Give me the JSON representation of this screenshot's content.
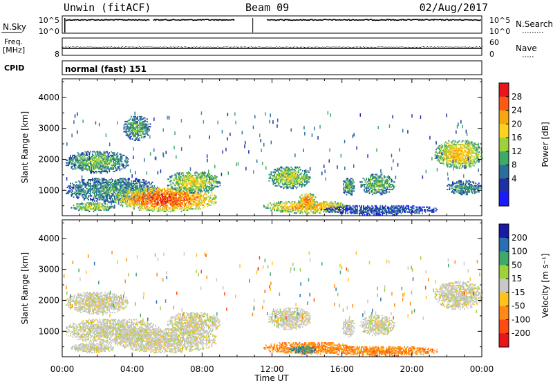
{
  "header": {
    "station": "Unwin (fitACF)",
    "beam": "Beam 09",
    "date": "02/Aug/2017"
  },
  "noise_panel": {
    "left_label": "N.Sky",
    "right_label": "N.Search",
    "left_ticks": [
      "10^5",
      "10^0"
    ],
    "right_ticks": [
      "10^5",
      "10^0"
    ]
  },
  "freq_panel": {
    "left_label_1": "Freq.",
    "left_label_2": "[MHz]",
    "left_tick_top": "",
    "left_tick_bottom": "8",
    "right_label": "Nave",
    "right_ticks": [
      "60",
      "0"
    ]
  },
  "cpid_panel": {
    "label": "CPID",
    "text": "normal (fast) 151"
  },
  "chart_data": [
    {
      "type": "heatmap",
      "name": "power",
      "xlabel": "Time UT",
      "ylabel": "Slant Range [km]",
      "xlim": [
        0,
        24
      ],
      "ylim": [
        180,
        4600
      ],
      "xticks": [
        "00:00",
        "04:00",
        "08:00",
        "12:00",
        "16:00",
        "20:00",
        "00:00"
      ],
      "yticks": [
        1000,
        2000,
        3000,
        4000
      ],
      "colorbar": {
        "label": "Power [dB]",
        "ticks": [
          "28",
          "24",
          "20",
          "16",
          "12",
          "8",
          "4"
        ],
        "colors": [
          "#e8151a",
          "#ff5a14",
          "#f7a70f",
          "#ffd21e",
          "#9fd13a",
          "#3fa96a",
          "#2a6f9c",
          "#1f2fa5",
          "#1a1aff"
        ]
      },
      "regions": [
        {
          "t": [
            0.2,
            3.8
          ],
          "r": [
            1550,
            2250
          ],
          "level": 0.45
        },
        {
          "t": [
            0.2,
            5.5
          ],
          "r": [
            600,
            1400
          ],
          "level": 0.35
        },
        {
          "t": [
            0.5,
            3.0
          ],
          "r": [
            300,
            600
          ],
          "level": 0.55
        },
        {
          "t": [
            3.0,
            8.8
          ],
          "r": [
            300,
            1100
          ],
          "level": 0.92
        },
        {
          "t": [
            6.0,
            9.0
          ],
          "r": [
            900,
            1600
          ],
          "level": 0.6
        },
        {
          "t": [
            3.5,
            5.0
          ],
          "r": [
            2600,
            3400
          ],
          "level": 0.4
        },
        {
          "t": [
            11.8,
            14.2
          ],
          "r": [
            1050,
            1750
          ],
          "level": 0.55
        },
        {
          "t": [
            11.5,
            16.5
          ],
          "r": [
            250,
            650
          ],
          "level": 0.75
        },
        {
          "t": [
            13.5,
            14.5
          ],
          "r": [
            400,
            900
          ],
          "level": 0.85
        },
        {
          "t": [
            14.8,
            21.5
          ],
          "r": [
            200,
            500
          ],
          "level": 0.2
        },
        {
          "t": [
            16.0,
            16.7
          ],
          "r": [
            800,
            1400
          ],
          "level": 0.4
        },
        {
          "t": [
            17.0,
            19.0
          ],
          "r": [
            850,
            1500
          ],
          "level": 0.45
        },
        {
          "t": [
            21.3,
            24.0
          ],
          "r": [
            1700,
            2600
          ],
          "level": 0.7
        },
        {
          "t": [
            22.0,
            24.0
          ],
          "r": [
            850,
            1300
          ],
          "level": 0.35
        }
      ]
    },
    {
      "type": "heatmap",
      "name": "velocity",
      "xlabel": "Time UT",
      "ylabel": "Slant Range [km]",
      "xlim": [
        0,
        24
      ],
      "ylim": [
        180,
        4600
      ],
      "xticks": [
        "00:00",
        "04:00",
        "08:00",
        "12:00",
        "16:00",
        "20:00",
        "00:00"
      ],
      "yticks": [
        1000,
        2000,
        3000,
        4000
      ],
      "colorbar": {
        "label": "Velocity [m s⁻¹]",
        "ticks": [
          "200",
          "100",
          "50",
          "15",
          "-15",
          "-50",
          "-100",
          "-200"
        ],
        "colors": [
          "#1a1aa5",
          "#2a6fb0",
          "#3fa96a",
          "#9fd13a",
          "#c8c8c8",
          "#ffc21e",
          "#ff8a14",
          "#ff4a14",
          "#e8151a"
        ]
      },
      "regions": [
        {
          "t": [
            0.2,
            3.8
          ],
          "r": [
            1550,
            2250
          ],
          "level": 0.0
        },
        {
          "t": [
            0.2,
            5.5
          ],
          "r": [
            600,
            1400
          ],
          "level": 0.0
        },
        {
          "t": [
            0.5,
            3.0
          ],
          "r": [
            300,
            600
          ],
          "level": 0.0
        },
        {
          "t": [
            3.0,
            8.8
          ],
          "r": [
            300,
            1100
          ],
          "level": 0.0
        },
        {
          "t": [
            6.0,
            9.0
          ],
          "r": [
            900,
            1600
          ],
          "level": 0.0
        },
        {
          "t": [
            11.8,
            14.2
          ],
          "r": [
            1050,
            1750
          ],
          "level": 0.0
        },
        {
          "t": [
            11.5,
            16.5
          ],
          "r": [
            250,
            650
          ],
          "level": -0.5
        },
        {
          "t": [
            13.0,
            14.5
          ],
          "r": [
            250,
            500
          ],
          "level": 0.6
        },
        {
          "t": [
            14.8,
            21.5
          ],
          "r": [
            200,
            500
          ],
          "level": -0.5
        },
        {
          "t": [
            16.0,
            16.7
          ],
          "r": [
            800,
            1400
          ],
          "level": 0.0
        },
        {
          "t": [
            17.0,
            19.0
          ],
          "r": [
            850,
            1500
          ],
          "level": 0.0
        },
        {
          "t": [
            21.3,
            24.0
          ],
          "r": [
            1700,
            2600
          ],
          "level": 0.0
        }
      ]
    }
  ]
}
